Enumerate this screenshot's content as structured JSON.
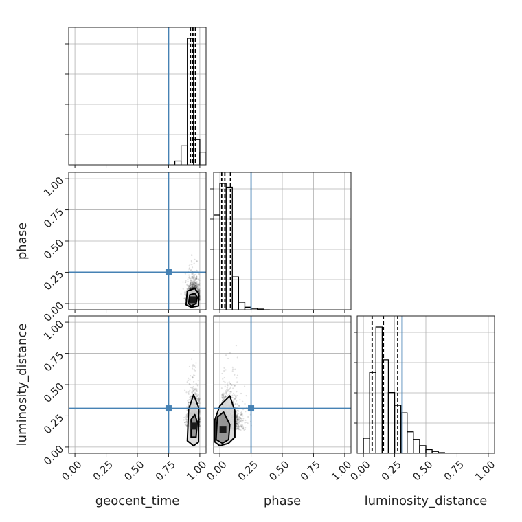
{
  "chart_data": {
    "type": "corner",
    "parameters": [
      "geocent_time",
      "phase",
      "luminosity_distance"
    ],
    "axis_ticks": [
      "0.00",
      "0.25",
      "0.50",
      "0.75",
      "1.00"
    ],
    "tick_values": [
      0.0,
      0.25,
      0.5,
      0.75,
      1.0
    ],
    "axis_range": [
      -0.05,
      1.05
    ],
    "grid": true,
    "truth_color": "#4682b4",
    "truths": {
      "geocent_time": 0.75,
      "phase": 0.25,
      "luminosity_distance": 0.31
    },
    "histograms": [
      {
        "parameter": "geocent_time",
        "bin_edges": [
          0.8,
          0.85,
          0.9,
          0.95,
          1.0,
          1.05
        ],
        "counts": [
          0.03,
          0.15,
          1.0,
          0.2,
          0.1
        ],
        "quantiles": [
          0.925,
          0.945,
          0.965
        ]
      },
      {
        "parameter": "phase",
        "bin_edges": [
          -0.05,
          0.0,
          0.05,
          0.1,
          0.15,
          0.2,
          0.25,
          0.3,
          0.35,
          0.4
        ],
        "counts": [
          0.75,
          1.0,
          0.97,
          0.26,
          0.06,
          0.02,
          0.01,
          0.005,
          0.0
        ],
        "quantiles": [
          0.015,
          0.04,
          0.085
        ]
      },
      {
        "parameter": "luminosity_distance",
        "bin_edges": [
          0.0,
          0.05,
          0.1,
          0.15,
          0.2,
          0.25,
          0.3,
          0.35,
          0.4,
          0.45,
          0.5,
          0.55,
          0.6,
          0.65,
          0.7
        ],
        "counts": [
          0.12,
          0.64,
          1.0,
          0.74,
          0.48,
          0.38,
          0.32,
          0.17,
          0.11,
          0.06,
          0.03,
          0.015,
          0.005,
          0.0
        ],
        "quantiles": [
          0.07,
          0.16,
          0.275
        ]
      }
    ],
    "contour_panels": [
      {
        "x": "geocent_time",
        "y": "phase",
        "sample_center": [
          0.95,
          0.05
        ],
        "sample_spread": [
          0.025,
          0.06
        ],
        "sample_tail": "y-up",
        "contours": [
          [
            [
              0.91,
              0.0
            ],
            [
              0.92,
              0.07
            ],
            [
              0.96,
              0.08
            ],
            [
              0.98,
              0.05
            ],
            [
              0.97,
              0.0
            ],
            [
              0.93,
              -0.02
            ]
          ],
          [
            [
              0.89,
              -0.01
            ],
            [
              0.9,
              0.1
            ],
            [
              0.96,
              0.12
            ],
            [
              0.99,
              0.08
            ],
            [
              0.99,
              -0.02
            ],
            [
              0.93,
              -0.03
            ]
          ]
        ]
      },
      {
        "x": "geocent_time",
        "y": "luminosity_distance",
        "sample_center": [
          0.95,
          0.2
        ],
        "sample_spread": [
          0.025,
          0.1
        ],
        "sample_tail": "y-up",
        "contours": [
          [
            [
              0.93,
              0.08
            ],
            [
              0.93,
              0.22
            ],
            [
              0.96,
              0.26
            ],
            [
              0.98,
              0.2
            ],
            [
              0.97,
              0.08
            ]
          ],
          [
            [
              0.9,
              0.05
            ],
            [
              0.91,
              0.3
            ],
            [
              0.95,
              0.42
            ],
            [
              0.99,
              0.32
            ],
            [
              0.99,
              0.04
            ],
            [
              0.95,
              0.01
            ]
          ]
        ]
      },
      {
        "x": "phase",
        "y": "luminosity_distance",
        "sample_center": [
          0.05,
          0.18
        ],
        "sample_spread": [
          0.05,
          0.11
        ],
        "sample_tail": "xy",
        "contours": [
          [
            [
              -0.03,
              0.06
            ],
            [
              -0.02,
              0.24
            ],
            [
              0.03,
              0.28
            ],
            [
              0.08,
              0.18
            ],
            [
              0.07,
              0.06
            ],
            [
              0.02,
              0.03
            ]
          ],
          [
            [
              -0.04,
              0.04
            ],
            [
              -0.04,
              0.22
            ],
            [
              0.0,
              0.33
            ],
            [
              0.08,
              0.41
            ],
            [
              0.12,
              0.29
            ],
            [
              0.12,
              0.08
            ],
            [
              0.07,
              0.03
            ],
            [
              0.0,
              0.01
            ]
          ]
        ]
      }
    ],
    "title": "",
    "legend": "none"
  }
}
